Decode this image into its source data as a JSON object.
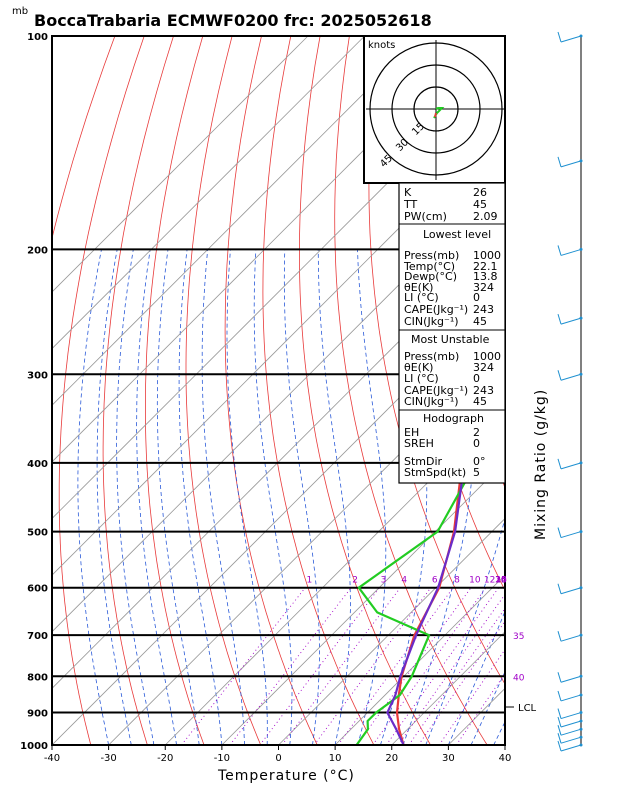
{
  "chart_data": {
    "type": "line",
    "title": "BoccaTrabaria ECMWF0200 frc: 2025052618",
    "pressure_unit_label": "mb",
    "xlabel": "Temperature (°C)",
    "right_axis_label": "Mixing Ratio (g/kg)",
    "xlim": [
      -40,
      40
    ],
    "ylim_mb": [
      1000,
      100
    ],
    "x_ticks": [
      -40,
      -30,
      -20,
      -10,
      0,
      10,
      20,
      30,
      40
    ],
    "pressure_ticks": [
      1000,
      900,
      800,
      700,
      600,
      500,
      400,
      300,
      200,
      100
    ],
    "mixing_ratio_labels": [
      "1",
      "2",
      "3",
      "4",
      "6",
      "8",
      "10",
      "12",
      "14",
      "16",
      "18",
      "20",
      "25",
      "30"
    ],
    "extra_mixing_labels": [
      "35",
      "40"
    ],
    "lcl_label": "LCL",
    "lcl_pressure": 895,
    "series": [
      {
        "color": "#e83a3a",
        "points_p_t": [
          [
            1000,
            22.1
          ],
          [
            950,
            18.5
          ],
          [
            900,
            15.2
          ],
          [
            850,
            12.4
          ],
          [
            800,
            9.6
          ],
          [
            700,
            4.6
          ],
          [
            600,
            0.6
          ],
          [
            500,
            -6.7
          ],
          [
            400,
            -17.4
          ],
          [
            300,
            -30.2
          ],
          [
            250,
            -41.0
          ],
          [
            200,
            -34.5
          ],
          [
            150,
            -22.0
          ],
          [
            100,
            -9.8
          ]
        ]
      },
      {
        "color": "#22cc22",
        "points_p_t": [
          [
            1000,
            13.8
          ],
          [
            950,
            13.0
          ],
          [
            925,
            11.5
          ],
          [
            900,
            11.5
          ],
          [
            850,
            12.6
          ],
          [
            800,
            11.4
          ],
          [
            700,
            7.2
          ],
          [
            650,
            -6.0
          ],
          [
            600,
            -13.6
          ],
          [
            500,
            -9.6
          ],
          [
            400,
            -15.0
          ],
          [
            300,
            -18.0
          ],
          [
            250,
            -20.0
          ],
          [
            200,
            -20.5
          ],
          [
            150,
            -18.5
          ],
          [
            100,
            -13.0
          ]
        ]
      },
      {
        "color": "#6a2cc8",
        "points_p_t": [
          [
            1000,
            22.1
          ],
          [
            950,
            18.0
          ],
          [
            900,
            13.5
          ],
          [
            850,
            11.8
          ],
          [
            800,
            9.4
          ],
          [
            700,
            4.9
          ],
          [
            600,
            0.4
          ],
          [
            500,
            -6.5
          ],
          [
            400,
            -17.0
          ],
          [
            300,
            -30.5
          ],
          [
            250,
            -40.0
          ],
          [
            200,
            -50.0
          ],
          [
            150,
            -60.0
          ],
          [
            100,
            -73.5
          ]
        ]
      }
    ],
    "hodograph": {
      "unit_label": "knots",
      "ring_labels": [
        "15",
        "30",
        "45"
      ]
    },
    "wind_barbs_on_right": true
  },
  "indices_panel": {
    "top_rows": [
      {
        "label": "K",
        "value": "26"
      },
      {
        "label": "TT",
        "value": "45"
      },
      {
        "label": "PW(cm)",
        "value": "2.09"
      }
    ],
    "lowest_level": {
      "header": "Lowest level",
      "rows": [
        {
          "label": "Press(mb)",
          "value": "1000"
        },
        {
          "label": "Temp(°C)",
          "value": "22.1"
        },
        {
          "label": "Dewp(°C)",
          "value": "13.8"
        },
        {
          "label": "θE(K)",
          "value": "324"
        },
        {
          "label": "LI (°C)",
          "value": "0"
        },
        {
          "label": "CAPE(Jkg⁻¹)",
          "value": "243"
        },
        {
          "label": "CIN(Jkg⁻¹)",
          "value": "45"
        }
      ]
    },
    "most_unstable": {
      "header": "Most Unstable",
      "rows": [
        {
          "label": "Press(mb)",
          "value": "1000"
        },
        {
          "label": "θE(K)",
          "value": "324"
        },
        {
          "label": "LI (°C)",
          "value": "0"
        },
        {
          "label": "CAPE(Jkg⁻¹)",
          "value": "243"
        },
        {
          "label": "CIN(Jkg⁻¹)",
          "value": "45"
        }
      ]
    },
    "hodograph_section": {
      "header": "Hodograph",
      "rows": [
        {
          "label": "EH",
          "value": "2"
        },
        {
          "label": "SREH",
          "value": "0"
        },
        {
          "label": "StmDir",
          "value": "0°"
        },
        {
          "label": "StmSpd(kt)",
          "value": "5"
        }
      ]
    }
  }
}
